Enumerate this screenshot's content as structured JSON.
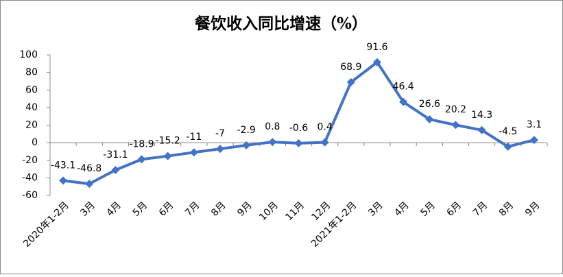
{
  "chart_data": {
    "type": "line",
    "title": "餐饮收入同比增速（%）",
    "categories": [
      "2020年1-2月",
      "3月",
      "4月",
      "5月",
      "6月",
      "7月",
      "8月",
      "9月",
      "10月",
      "11月",
      "12月",
      "2021年1-2月",
      "3月",
      "4月",
      "5月",
      "6月",
      "7月",
      "8月",
      "9月"
    ],
    "values": [
      -43.1,
      -46.8,
      -31.1,
      -18.9,
      -15.2,
      -11,
      -7,
      -2.9,
      0.8,
      -0.6,
      0.4,
      68.9,
      91.6,
      46.4,
      26.6,
      20.2,
      14.3,
      -4.5,
      3.1
    ],
    "color": "#4472c4",
    "ylim": [
      -60,
      100
    ],
    "yticks": [
      -60,
      -40,
      -20,
      0,
      20,
      40,
      60,
      80,
      100
    ],
    "grid": false
  }
}
